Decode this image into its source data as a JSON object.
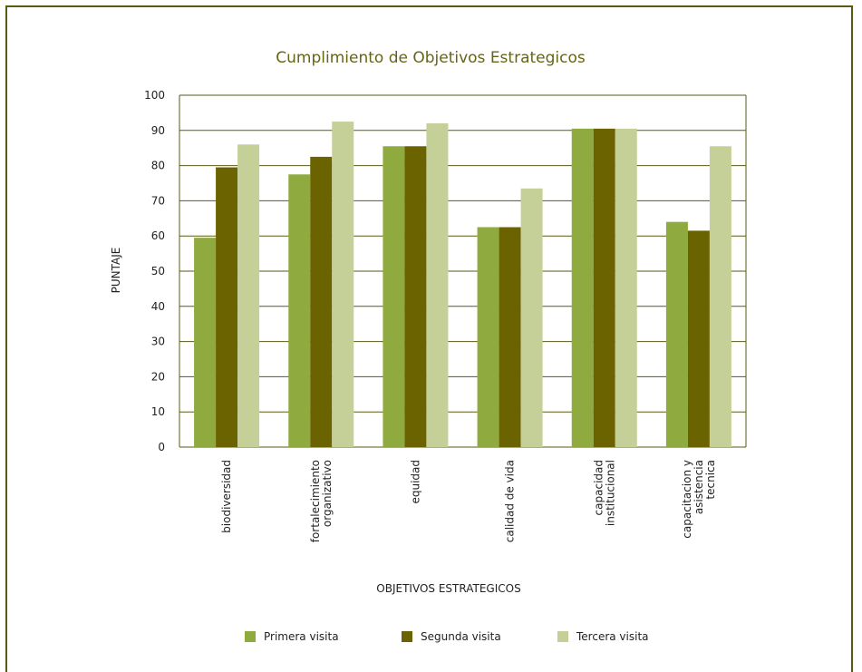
{
  "chart_data": {
    "type": "bar",
    "title": "Cumplimiento de Objetivos Estrategicos",
    "xlabel": "OBJETIVOS ESTRATEGICOS",
    "ylabel": "PUNTAJE",
    "ylim": [
      0,
      100
    ],
    "yticks": [
      0,
      10,
      20,
      30,
      40,
      50,
      60,
      70,
      80,
      90,
      100
    ],
    "grid": true,
    "legend_position": "bottom",
    "categories": [
      [
        "biodiversidad"
      ],
      [
        "fortalecimiento",
        "organizativo"
      ],
      [
        "equidad"
      ],
      [
        "calidad de vida"
      ],
      [
        "capacidad",
        "institucional"
      ],
      [
        "capacitacion y",
        "asistencia",
        "tecnica"
      ]
    ],
    "series": [
      {
        "name": "Primera visita",
        "color": "#8faa3e",
        "values": [
          59.5,
          77.5,
          85.5,
          62.5,
          90.5,
          64
        ]
      },
      {
        "name": "Segunda visita",
        "color": "#6b6300",
        "values": [
          79.5,
          82.5,
          85.5,
          62.5,
          90.5,
          61.5
        ]
      },
      {
        "name": "Tercera visita",
        "color": "#c5cf98",
        "values": [
          86,
          92.5,
          92,
          73.5,
          90.5,
          85.5
        ]
      }
    ],
    "gridline_color": "#5b5a14"
  }
}
